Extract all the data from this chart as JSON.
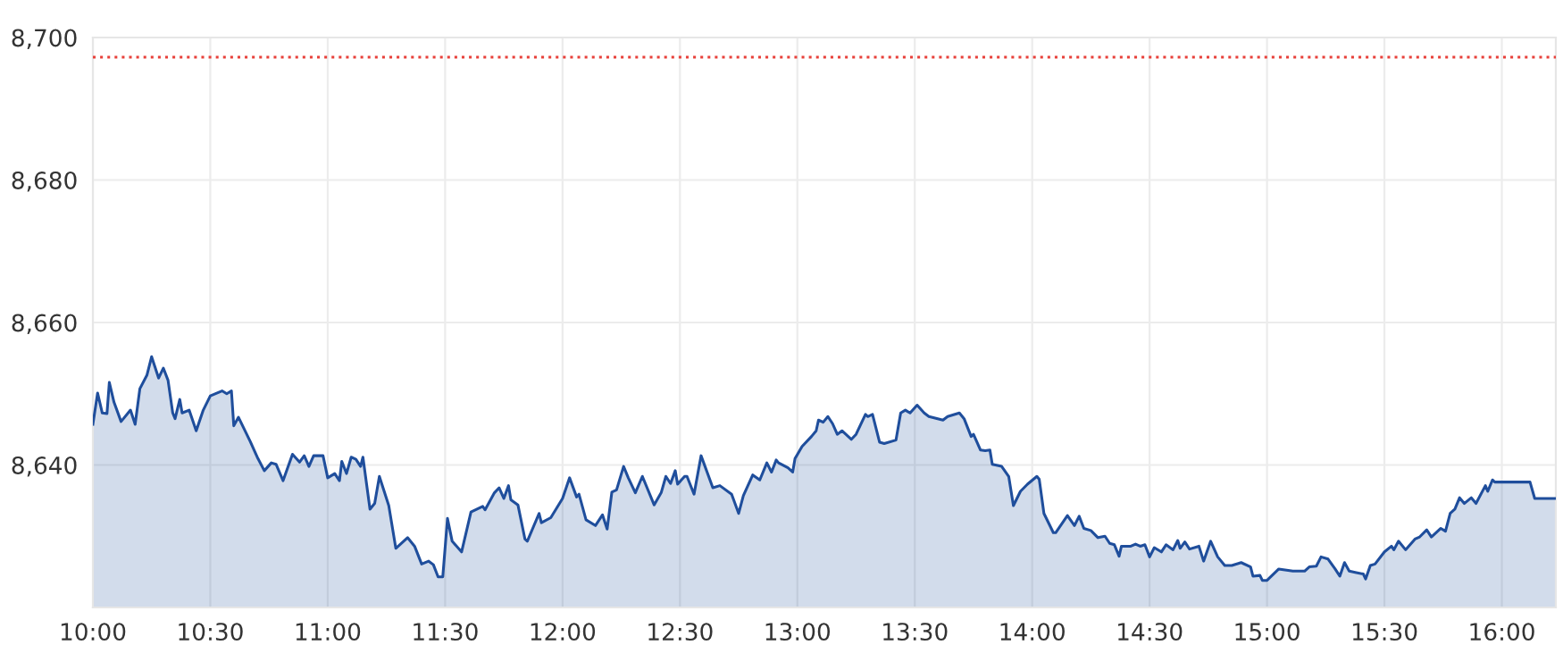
{
  "chart_data": {
    "type": "area",
    "x": [
      10.0,
      10.02,
      10.04,
      10.06,
      10.07,
      10.09,
      10.12,
      10.16,
      10.18,
      10.2,
      10.23,
      10.25,
      10.28,
      10.3,
      10.32,
      10.34,
      10.35,
      10.37,
      10.38,
      10.41,
      10.44,
      10.47,
      10.5,
      10.55,
      10.57,
      10.59,
      10.6,
      10.62,
      10.67,
      10.7,
      10.73,
      10.76,
      10.78,
      10.81,
      10.85,
      10.88,
      10.9,
      10.92,
      10.94,
      10.98,
      11.0,
      11.03,
      11.05,
      11.06,
      11.08,
      11.1,
      11.12,
      11.14,
      11.15,
      11.18,
      11.2,
      11.22,
      11.26,
      11.29,
      11.34,
      11.37,
      11.4,
      11.43,
      11.45,
      11.47,
      11.49,
      11.51,
      11.53,
      11.57,
      11.61,
      11.66,
      11.67,
      11.71,
      11.73,
      11.75,
      11.77,
      11.78,
      11.81,
      11.84,
      11.85,
      11.9,
      11.91,
      11.95,
      12.0,
      12.03,
      12.06,
      12.07,
      12.1,
      12.14,
      12.17,
      12.19,
      12.21,
      12.23,
      12.26,
      12.28,
      12.31,
      12.34,
      12.39,
      12.42,
      12.44,
      12.46,
      12.48,
      12.49,
      12.52,
      12.53,
      12.56,
      12.59,
      12.64,
      12.67,
      12.72,
      12.75,
      12.77,
      12.81,
      12.84,
      12.87,
      12.89,
      12.91,
      12.92,
      12.96,
      12.98,
      12.99,
      13.02,
      13.06,
      13.08,
      13.09,
      13.11,
      13.13,
      13.15,
      13.17,
      13.19,
      13.23,
      13.25,
      13.29,
      13.3,
      13.32,
      13.35,
      13.37,
      13.42,
      13.44,
      13.46,
      13.48,
      13.51,
      13.54,
      13.56,
      13.62,
      13.64,
      13.69,
      13.71,
      13.74,
      13.75,
      13.78,
      13.8,
      13.82,
      13.83,
      13.87,
      13.9,
      13.92,
      13.95,
      13.98,
      14.02,
      14.03,
      14.05,
      14.09,
      14.1,
      14.15,
      14.18,
      14.2,
      14.22,
      14.25,
      14.28,
      14.31,
      14.33,
      14.35,
      14.37,
      14.38,
      14.42,
      14.44,
      14.46,
      14.48,
      14.5,
      14.52,
      14.55,
      14.57,
      14.6,
      14.62,
      14.63,
      14.65,
      14.67,
      14.71,
      14.73,
      14.76,
      14.79,
      14.82,
      14.85,
      14.89,
      14.93,
      14.94,
      14.97,
      14.98,
      15.0,
      15.05,
      15.11,
      15.16,
      15.18,
      15.21,
      15.23,
      15.26,
      15.29,
      15.31,
      15.33,
      15.35,
      15.38,
      15.41,
      15.42,
      15.44,
      15.46,
      15.5,
      15.53,
      15.54,
      15.56,
      15.59,
      15.63,
      15.65,
      15.68,
      15.7,
      15.74,
      15.76,
      15.78,
      15.8,
      15.82,
      15.84,
      15.87,
      15.89,
      15.93,
      15.94,
      15.96,
      15.97,
      16.12,
      16.14,
      16.23
    ],
    "series": [
      {
        "color": "#1f4e9c",
        "values": [
          8645.7,
          8650.1,
          8647.3,
          8647.2,
          8651.6,
          8648.8,
          8646.1,
          8647.7,
          8645.7,
          8650.7,
          8652.6,
          8655.2,
          8652.2,
          8653.6,
          8651.9,
          8647.3,
          8646.5,
          8649.2,
          8647.3,
          8647.7,
          8644.8,
          8647.7,
          8649.7,
          8650.4,
          8650.0,
          8650.4,
          8645.5,
          8646.7,
          8643.3,
          8641.1,
          8639.2,
          8640.3,
          8640.1,
          8637.8,
          8641.5,
          8640.4,
          8641.3,
          8639.8,
          8641.3,
          8641.3,
          8638.2,
          8638.8,
          8637.8,
          8640.5,
          8638.8,
          8641.1,
          8640.8,
          8639.8,
          8641.1,
          8633.8,
          8634.6,
          8638.4,
          8634.3,
          8628.3,
          8629.8,
          8628.6,
          8626.1,
          8626.5,
          8626.0,
          8624.3,
          8624.3,
          8632.5,
          8629.3,
          8627.8,
          8633.4,
          8634.2,
          8633.7,
          8636.1,
          8636.8,
          8635.3,
          8637.1,
          8635.1,
          8634.4,
          8629.6,
          8629.3,
          8633.2,
          8631.9,
          8632.6,
          8635.3,
          8638.2,
          8635.5,
          8635.9,
          8632.3,
          8631.5,
          8633.0,
          8631.0,
          8636.2,
          8636.5,
          8639.8,
          8638.2,
          8636.1,
          8638.4,
          8634.4,
          8636.1,
          8638.4,
          8637.4,
          8639.2,
          8637.3,
          8638.4,
          8638.4,
          8635.9,
          8641.3,
          8636.8,
          8637.1,
          8635.9,
          8633.2,
          8635.7,
          8638.6,
          8637.9,
          8640.3,
          8639.0,
          8640.7,
          8640.3,
          8639.6,
          8639.0,
          8640.9,
          8642.6,
          8644.0,
          8644.8,
          8646.3,
          8646.0,
          8646.8,
          8645.8,
          8644.3,
          8644.8,
          8643.6,
          8644.3,
          8647.1,
          8646.8,
          8647.1,
          8643.2,
          8643.0,
          8643.5,
          8647.3,
          8647.7,
          8647.3,
          8648.4,
          8647.3,
          8646.8,
          8646.3,
          8646.8,
          8647.3,
          8646.5,
          8644.0,
          8644.3,
          8642.1,
          8642.0,
          8642.1,
          8640.1,
          8639.8,
          8638.4,
          8634.3,
          8636.3,
          8637.3,
          8638.4,
          8638.0,
          8633.2,
          8630.5,
          8630.5,
          8632.9,
          8631.5,
          8632.8,
          8631.1,
          8630.8,
          8629.8,
          8630.0,
          8629.0,
          8628.8,
          8627.2,
          8628.6,
          8628.6,
          8628.9,
          8628.6,
          8628.8,
          8627.1,
          8628.4,
          8627.8,
          8628.8,
          8628.1,
          8629.4,
          8628.3,
          8629.2,
          8628.2,
          8628.6,
          8626.5,
          8629.3,
          8627.1,
          8625.9,
          8625.9,
          8626.3,
          8625.7,
          8624.4,
          8624.5,
          8623.8,
          8623.8,
          8625.4,
          8625.1,
          8625.1,
          8625.7,
          8625.8,
          8627.1,
          8626.8,
          8625.4,
          8624.4,
          8626.3,
          8625.1,
          8624.9,
          8624.7,
          8624.0,
          8625.9,
          8626.1,
          8627.8,
          8628.6,
          8628.1,
          8629.3,
          8628.1,
          8629.6,
          8629.9,
          8630.9,
          8629.9,
          8631.1,
          8630.7,
          8633.2,
          8633.8,
          8635.4,
          8634.6,
          8635.4,
          8634.6,
          8637.1,
          8636.3,
          8637.9,
          8637.6,
          8637.6,
          8635.3,
          8635.3
        ]
      }
    ],
    "xlim": [
      10,
      16.23
    ],
    "xticks": [
      {
        "value": 10,
        "label": "10:00"
      },
      {
        "value": 10.5,
        "label": "10:30"
      },
      {
        "value": 11,
        "label": "11:00"
      },
      {
        "value": 11.5,
        "label": "11:30"
      },
      {
        "value": 12,
        "label": "12:00"
      },
      {
        "value": 12.5,
        "label": "12:30"
      },
      {
        "value": 13,
        "label": "13:00"
      },
      {
        "value": 13.5,
        "label": "13:30"
      },
      {
        "value": 14,
        "label": "14:00"
      },
      {
        "value": 14.5,
        "label": "14:30"
      },
      {
        "value": 15,
        "label": "15:00"
      },
      {
        "value": 15.5,
        "label": "15:30"
      },
      {
        "value": 16,
        "label": "16:00"
      }
    ],
    "ylim": [
      8620,
      8700
    ],
    "yticks": [
      {
        "value": 8620,
        "label": null
      },
      {
        "value": 8640,
        "label": "8,640"
      },
      {
        "value": 8660,
        "label": "8,660"
      },
      {
        "value": 8680,
        "label": "8,680"
      },
      {
        "value": 8700,
        "label": "8,700"
      }
    ],
    "grid": true,
    "ref_lines": [
      {
        "axis": "y",
        "value": 8697.25,
        "color": "#e8403a",
        "line_style": "dotted"
      }
    ]
  }
}
